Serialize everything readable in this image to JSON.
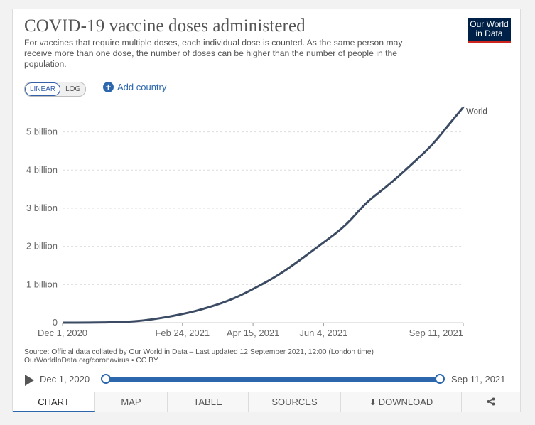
{
  "header": {
    "title": "COVID-19 vaccine doses administered",
    "subtitle": "For vaccines that require multiple doses, each individual dose is counted. As the same person may receive more than one dose, the number of doses can be higher than the number of people in the population."
  },
  "logo": {
    "line1": "Our World",
    "line2": "in Data"
  },
  "controls": {
    "scale_options": [
      "LINEAR",
      "LOG"
    ],
    "selected_scale": "LINEAR",
    "add_country_label": "Add country"
  },
  "chart_data": {
    "type": "line",
    "title": "COVID-19 vaccine doses administered",
    "xlabel": "",
    "ylabel": "",
    "x_tick_labels": [
      "Dec 1, 2020",
      "Feb 24, 2021",
      "Apr 15, 2021",
      "Jun 4, 2021",
      "Sep 11, 2021"
    ],
    "y_tick_labels": [
      "0",
      "1 billion",
      "2 billion",
      "3 billion",
      "4 billion",
      "5 billion"
    ],
    "ylim": [
      0,
      5700000000
    ],
    "scale": "linear",
    "grid": "horizontal dashed",
    "legend": "inline label at line end",
    "series": [
      {
        "name": "World",
        "color": "#3b4b63",
        "points": [
          [
            "2020-12-01",
            0
          ],
          [
            "2020-12-20",
            1000000
          ],
          [
            "2021-01-01",
            5000000
          ],
          [
            "2021-01-15",
            20000000
          ],
          [
            "2021-02-01",
            70000000
          ],
          [
            "2021-02-24",
            220000000
          ],
          [
            "2021-03-15",
            400000000
          ],
          [
            "2021-04-01",
            620000000
          ],
          [
            "2021-04-15",
            880000000
          ],
          [
            "2021-05-01",
            1200000000
          ],
          [
            "2021-05-15",
            1550000000
          ],
          [
            "2021-06-04",
            2100000000
          ],
          [
            "2021-06-20",
            2550000000
          ],
          [
            "2021-07-04",
            3150000000
          ],
          [
            "2021-07-20",
            3600000000
          ],
          [
            "2021-08-04",
            4100000000
          ],
          [
            "2021-08-20",
            4650000000
          ],
          [
            "2021-09-01",
            5200000000
          ],
          [
            "2021-09-11",
            5650000000
          ]
        ]
      }
    ]
  },
  "source": {
    "line1": "Source: Official data collated by Our World in Data – Last updated 12 September 2021, 12:00 (London time)",
    "line2": "OurWorldInData.org/coronavirus • CC BY"
  },
  "timeline": {
    "start": "Dec 1, 2020",
    "end": "Sep 11, 2021"
  },
  "tabs": [
    {
      "label": "CHART",
      "active": true
    },
    {
      "label": "MAP",
      "active": false
    },
    {
      "label": "TABLE",
      "active": false
    },
    {
      "label": "SOURCES",
      "active": false
    },
    {
      "label": "DOWNLOAD",
      "active": false
    }
  ],
  "colors": {
    "accent": "#2c67ad",
    "line": "#3b4b63",
    "logo_bg": "#002147",
    "logo_bar": "#ce261e"
  }
}
